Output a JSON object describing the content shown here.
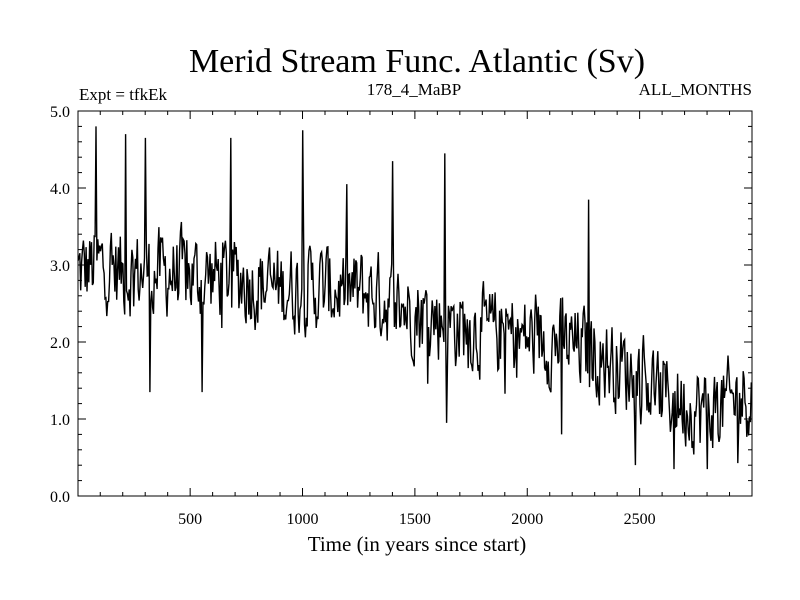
{
  "chart_data": {
    "type": "line",
    "title": "Merid Stream Func. Atlantic (Sv)",
    "subtitle_left": "Expt = tfkEk",
    "subtitle_center": "178_4_MaBP",
    "subtitle_right": "ALL_MONTHS",
    "xlabel": "Time (in years since start)",
    "ylabel": "",
    "xlim": [
      1,
      3000
    ],
    "ylim": [
      0.0,
      5.0
    ],
    "x_ticks": [
      500,
      1000,
      1500,
      2000,
      2500
    ],
    "x_tick_labels": [
      "500",
      "1000",
      "1500",
      "2000",
      "2500"
    ],
    "y_ticks": [
      0.0,
      1.0,
      2.0,
      3.0,
      4.0,
      5.0
    ],
    "y_tick_labels": [
      "0.0",
      "1.0",
      "2.0",
      "3.0",
      "4.0",
      "5.0"
    ],
    "grid": false,
    "series": [
      {
        "color": "#000000",
        "x": [
          1,
          100,
          200,
          300,
          400,
          500,
          600,
          700,
          800,
          900,
          1000,
          1100,
          1200,
          1300,
          1400,
          1500,
          1600,
          1700,
          1800,
          1900,
          2000,
          2100,
          2200,
          2300,
          2400,
          2500,
          2600,
          2700,
          2800,
          2900,
          3000
        ],
        "y": [
          2.9,
          3.0,
          2.9,
          2.9,
          2.9,
          2.85,
          2.85,
          2.85,
          2.75,
          2.7,
          2.7,
          2.7,
          2.65,
          2.65,
          2.5,
          2.4,
          2.3,
          2.2,
          2.15,
          2.1,
          2.05,
          2.0,
          1.95,
          1.85,
          1.7,
          1.55,
          1.35,
          1.2,
          1.1,
          1.2,
          1.35
        ]
      }
    ],
    "peaks": [
      {
        "x": 80,
        "y": 4.8
      },
      {
        "x": 210,
        "y": 4.7
      },
      {
        "x": 300,
        "y": 4.65
      },
      {
        "x": 680,
        "y": 4.65
      },
      {
        "x": 1000,
        "y": 4.75
      },
      {
        "x": 1400,
        "y": 4.35
      },
      {
        "x": 1630,
        "y": 4.45
      },
      {
        "x": 2270,
        "y": 3.85
      }
    ],
    "troughs": [
      {
        "x": 320,
        "y": 1.35
      },
      {
        "x": 550,
        "y": 1.35
      },
      {
        "x": 1640,
        "y": 0.95
      },
      {
        "x": 2150,
        "y": 0.8
      },
      {
        "x": 2650,
        "y": 0.35
      },
      {
        "x": 2800,
        "y": 0.35
      }
    ]
  }
}
